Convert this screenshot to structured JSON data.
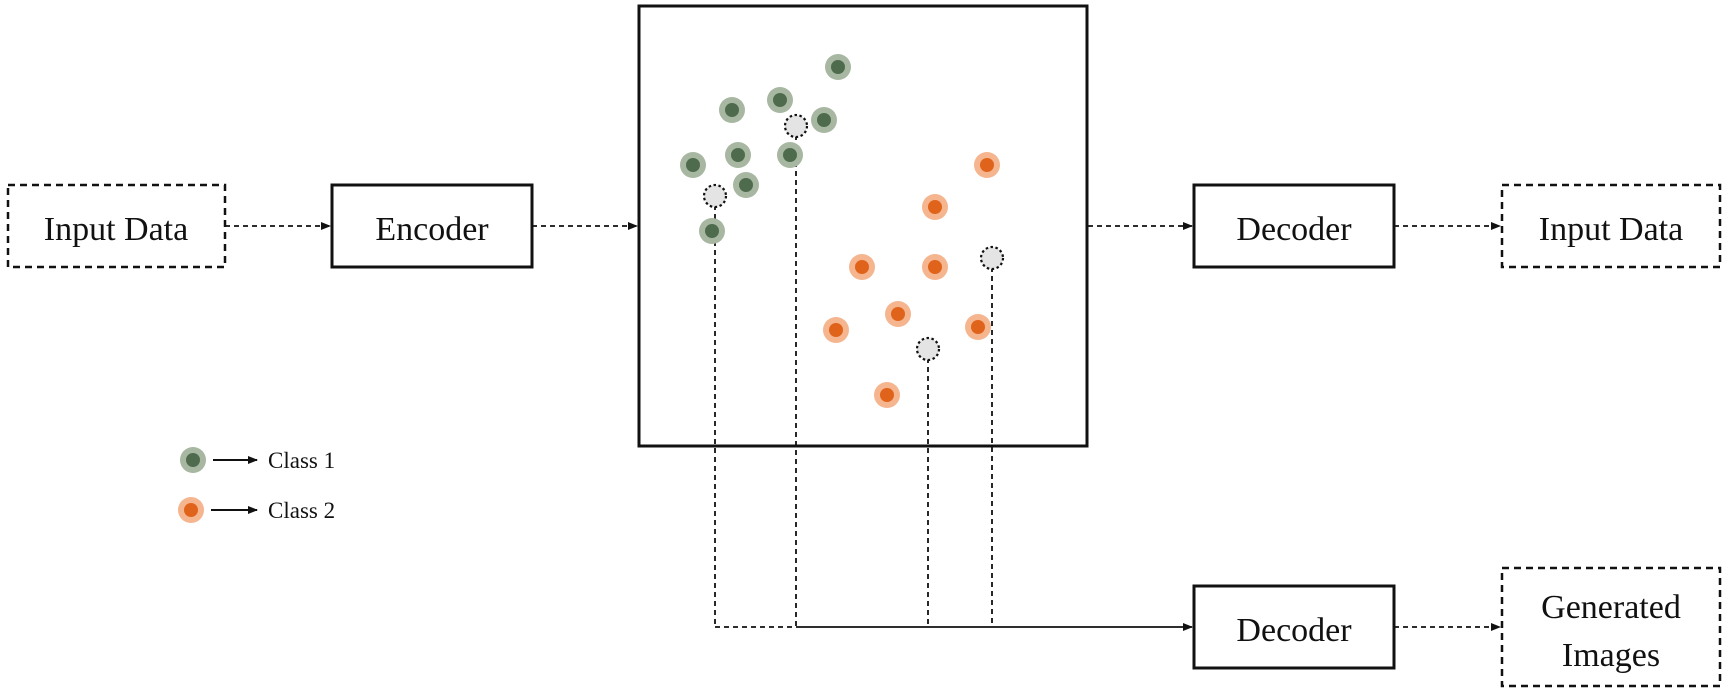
{
  "boxes": {
    "input_left": "Input Data",
    "encoder": "Encoder",
    "decoder_top": "Decoder",
    "input_right": "Input Data",
    "decoder_bottom": "Decoder",
    "generated_line1": "Generated",
    "generated_line2": "Images"
  },
  "legend": {
    "class1": "Class 1",
    "class2": "Class 2"
  },
  "colors": {
    "class1_core": "#4f6b4d",
    "class1_halo": "#a7b7a1",
    "class2_core": "#e0631c",
    "class2_halo": "#f5b58f",
    "sample_fill": "#e4e4e4"
  }
}
